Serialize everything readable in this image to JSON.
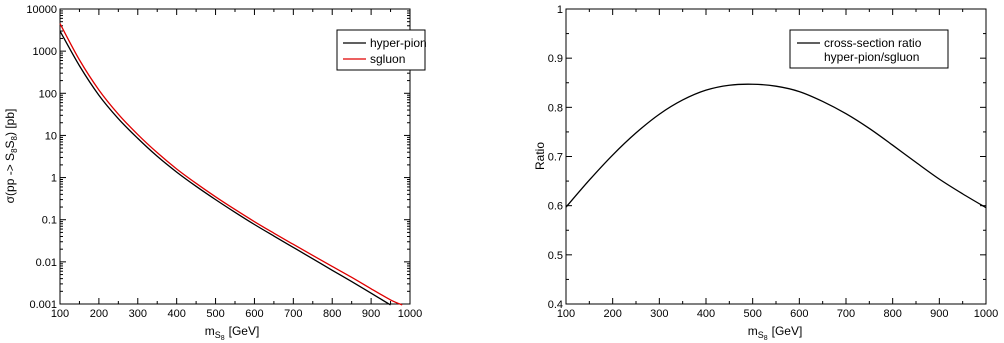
{
  "chart_data": [
    {
      "type": "line",
      "yscale": "log",
      "xlim": [
        100,
        1000
      ],
      "ylim": [
        0.001,
        10000
      ],
      "xticks": [
        "100",
        "200",
        "300",
        "400",
        "500",
        "600",
        "700",
        "800",
        "900",
        "1000"
      ],
      "yticks": [
        "0.001",
        "0.01",
        "0.1",
        "1",
        "10",
        "100",
        "1000",
        "10000"
      ],
      "xlabel": "m",
      "xlabel_sub": "S",
      "xlabel_subsub": "8",
      "xlabel_unit": "[GeV]",
      "ylabel": "σ(pp -> S",
      "ylabel_sub1": "8",
      "ylabel_mid": "S",
      "ylabel_sub2": "8",
      "ylabel_end": ") [pb]",
      "legend_position": "top-right",
      "grid": false,
      "series": [
        {
          "name": "hyper-pion",
          "color": "#000000",
          "x": [
            100,
            150,
            200,
            250,
            300,
            350,
            400,
            450,
            500,
            550,
            600,
            650,
            700,
            750,
            800,
            850,
            900,
            950
          ],
          "y": [
            3000,
            450,
            90,
            25,
            8.5,
            3.2,
            1.35,
            0.62,
            0.3,
            0.15,
            0.077,
            0.041,
            0.022,
            0.0118,
            0.0063,
            0.0034,
            0.0018,
            0.00095
          ]
        },
        {
          "name": "sgluon",
          "color": "#e00000",
          "x": [
            100,
            150,
            200,
            250,
            300,
            350,
            400,
            450,
            500,
            550,
            600,
            650,
            700,
            750,
            800,
            850,
            900,
            950,
            980
          ],
          "y": [
            4500,
            620,
            120,
            32,
            10.5,
            3.9,
            1.6,
            0.73,
            0.35,
            0.175,
            0.09,
            0.048,
            0.026,
            0.0142,
            0.0078,
            0.0043,
            0.0023,
            0.00125,
            0.00095
          ]
        }
      ]
    },
    {
      "type": "line",
      "yscale": "linear",
      "xlim": [
        100,
        1000
      ],
      "ylim": [
        0.4,
        1
      ],
      "xticks": [
        "100",
        "200",
        "300",
        "400",
        "500",
        "600",
        "700",
        "800",
        "900",
        "1000"
      ],
      "yticks": [
        "0.4",
        "0.5",
        "0.6",
        "0.7",
        "0.8",
        "0.9",
        "1"
      ],
      "xlabel": "m",
      "xlabel_sub": "S",
      "xlabel_subsub": "8",
      "xlabel_unit": "[GeV]",
      "ylabel": "Ratio",
      "legend_position": "top-right",
      "grid": false,
      "series": [
        {
          "name": "cross-section ratio",
          "name_line2": "hyper-pion/sgluon",
          "color": "#000000",
          "x": [
            100,
            150,
            200,
            250,
            300,
            350,
            400,
            450,
            500,
            550,
            600,
            650,
            700,
            750,
            800,
            850,
            900,
            950,
            1000
          ],
          "y": [
            0.597,
            0.652,
            0.703,
            0.748,
            0.786,
            0.815,
            0.835,
            0.845,
            0.847,
            0.843,
            0.832,
            0.812,
            0.787,
            0.757,
            0.723,
            0.688,
            0.654,
            0.624,
            0.596
          ]
        }
      ]
    }
  ]
}
